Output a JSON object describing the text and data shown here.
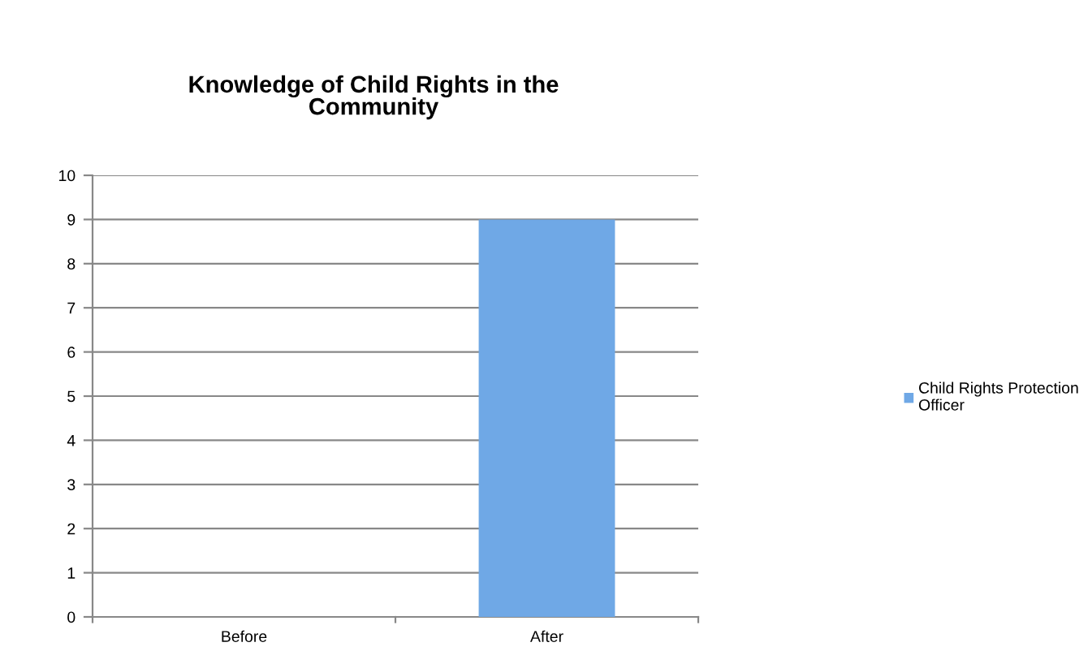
{
  "chart_data": {
    "type": "bar",
    "title": "Knowledge of Child Rights in the Community",
    "categories": [
      "Before",
      "After"
    ],
    "series": [
      {
        "name": "Child Rights Protection Officer",
        "color": "#6fa8e6",
        "values": [
          0,
          9
        ]
      }
    ],
    "ylim": [
      0,
      10
    ],
    "yticks": [
      0,
      1,
      2,
      3,
      4,
      5,
      6,
      7,
      8,
      9,
      10
    ],
    "grid": "y",
    "legend": "right"
  }
}
